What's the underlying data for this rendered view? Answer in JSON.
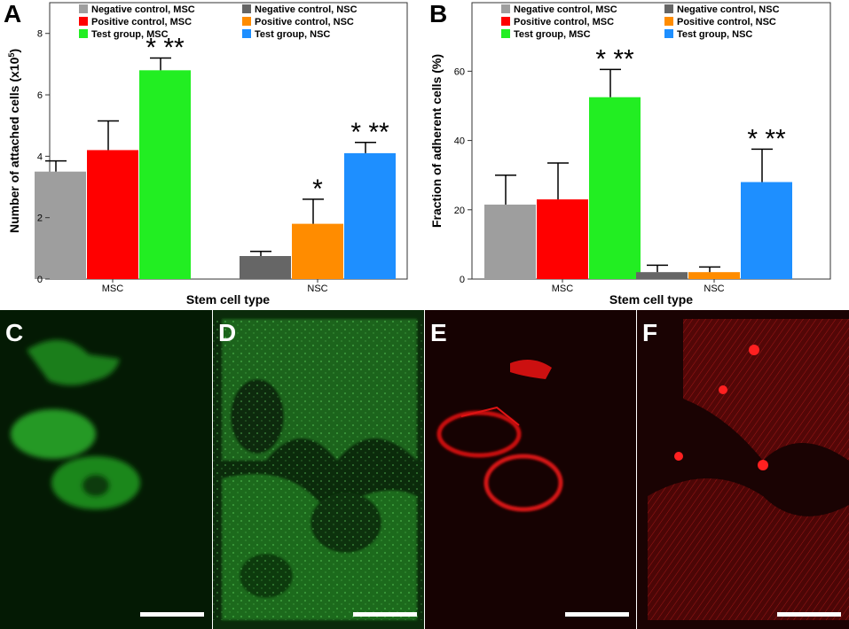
{
  "panel_letters": [
    "A",
    "B",
    "C",
    "D",
    "E",
    "F"
  ],
  "legend": [
    {
      "label": "Negative control, MSC",
      "color": "#9e9e9e"
    },
    {
      "label": "Positive control, MSC",
      "color": "#ff0000"
    },
    {
      "label": "Test group, MSC",
      "color": "#22ee22"
    },
    {
      "label": "Negative control, NSC",
      "color": "#666666"
    },
    {
      "label": "Positive control, NSC",
      "color": "#ff8c00"
    },
    {
      "label": "Test group, NSC",
      "color": "#1e8fff"
    }
  ],
  "chart_data": [
    {
      "panel": "A",
      "type": "bar",
      "xlabel": "Stem cell type",
      "ylabel": "Number of attached cells (x10^5)",
      "ylabel_parts": {
        "text": "Number of attached cells (x10",
        "superscript": "5",
        "suffix": ")"
      },
      "categories": [
        "MSC",
        "NSC"
      ],
      "ylim": [
        0,
        8.8
      ],
      "yticks": [
        0,
        2,
        4,
        6,
        8
      ],
      "series": [
        {
          "name": "Negative control, MSC",
          "category": "MSC",
          "value": 3.5,
          "error": 0.35,
          "annotation": ""
        },
        {
          "name": "Positive control, MSC",
          "category": "MSC",
          "value": 4.2,
          "error": 0.95,
          "annotation": ""
        },
        {
          "name": "Test group, MSC",
          "category": "MSC",
          "value": 6.8,
          "error": 0.4,
          "annotation": "* **"
        },
        {
          "name": "Negative control, NSC",
          "category": "NSC",
          "value": 0.75,
          "error": 0.15,
          "annotation": ""
        },
        {
          "name": "Positive control, NSC",
          "category": "NSC",
          "value": 1.8,
          "error": 0.8,
          "annotation": "*"
        },
        {
          "name": "Test group, NSC",
          "category": "NSC",
          "value": 4.1,
          "error": 0.35,
          "annotation": "* **"
        }
      ],
      "grid": false
    },
    {
      "panel": "B",
      "type": "bar",
      "xlabel": "Stem cell type",
      "ylabel": "Fraction of adherent cells (%)",
      "categories": [
        "MSC",
        "NSC"
      ],
      "ylim": [
        0,
        78
      ],
      "yticks": [
        0,
        20,
        40,
        60
      ],
      "series": [
        {
          "name": "Negative control, MSC",
          "category": "MSC",
          "value": 21.5,
          "error": 8.5,
          "annotation": ""
        },
        {
          "name": "Positive control, MSC",
          "category": "MSC",
          "value": 23,
          "error": 10.5,
          "annotation": ""
        },
        {
          "name": "Test group, MSC",
          "category": "MSC",
          "value": 52.5,
          "error": 8,
          "annotation": "* **"
        },
        {
          "name": "Negative control, NSC",
          "category": "NSC",
          "value": 2,
          "error": 2,
          "annotation": ""
        },
        {
          "name": "Positive control, NSC",
          "category": "NSC",
          "value": 2,
          "error": 1.5,
          "annotation": ""
        },
        {
          "name": "Test group, NSC",
          "category": "NSC",
          "value": 28,
          "error": 9.5,
          "annotation": "* **"
        }
      ],
      "grid": false
    }
  ],
  "micrographs": [
    {
      "letter": "C",
      "stain": "green",
      "bg": "#041a04",
      "cell": "#2fb82f"
    },
    {
      "letter": "D",
      "stain": "green",
      "bg": "#0a2a0a",
      "cell": "#3fbf3f"
    },
    {
      "letter": "E",
      "stain": "red",
      "bg": "#180202",
      "cell": "#e01010"
    },
    {
      "letter": "F",
      "stain": "red",
      "bg": "#1a0303",
      "cell": "#e81515"
    }
  ]
}
